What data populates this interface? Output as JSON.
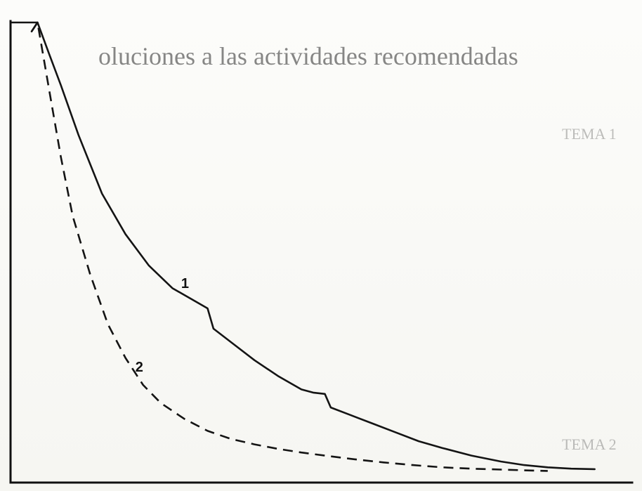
{
  "chart_data": {
    "type": "line",
    "title": "",
    "xlabel": "",
    "ylabel": "",
    "xlim": [
      0,
      100
    ],
    "ylim": [
      0,
      100
    ],
    "grid": false,
    "series": [
      {
        "name": "1",
        "style": "solid",
        "x": [
          0,
          1,
          3,
          5,
          8,
          12,
          16,
          20,
          24,
          28,
          30,
          31,
          34,
          38,
          42,
          46,
          48,
          50,
          51,
          54,
          58,
          62,
          66,
          70,
          75,
          80,
          84,
          88,
          92,
          96
        ],
        "y": [
          98,
          100,
          93,
          86,
          75,
          62,
          53,
          46,
          41,
          38,
          36.5,
          32,
          29,
          25,
          21.5,
          18.5,
          17.8,
          17.5,
          14.5,
          13,
          11,
          9,
          7,
          5.5,
          3.8,
          2.5,
          1.7,
          1.2,
          0.9,
          0.8
        ]
      },
      {
        "name": "2",
        "style": "dashed",
        "x": [
          0,
          1,
          3,
          5,
          7,
          10,
          13,
          16,
          19,
          22,
          26,
          30,
          34,
          38,
          42,
          46,
          50,
          55,
          60,
          65,
          70,
          75,
          80,
          85,
          88
        ],
        "y": [
          98,
          100,
          85,
          70,
          57,
          44,
          33,
          25.5,
          19.5,
          15.5,
          12,
          9.3,
          7.5,
          6.3,
          5.3,
          4.5,
          3.8,
          3,
          2.3,
          1.7,
          1.2,
          0.9,
          0.7,
          0.5,
          0.4
        ]
      }
    ],
    "plateau": {
      "x": [
        -3.4,
        1
      ],
      "y": 100
    },
    "annotations": [
      {
        "text": "1",
        "x": 25.5,
        "y": 41
      },
      {
        "text": "2",
        "x": 17.7,
        "y": 22.5
      }
    ]
  },
  "background": {
    "show_through_text": [
      "oluciones a las actividades recomendadas",
      "TEMA 1",
      "TEMA 2"
    ]
  }
}
